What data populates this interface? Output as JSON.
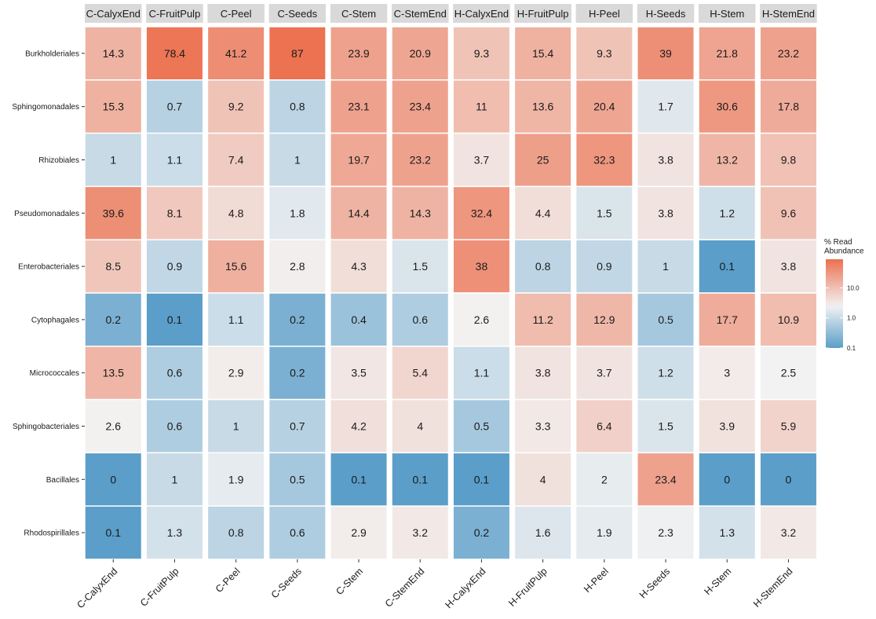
{
  "chart_data": {
    "type": "heatmap",
    "columns": [
      "C-CalyxEnd",
      "C-FruitPulp",
      "C-Peel",
      "C-Seeds",
      "C-Stem",
      "C-StemEnd",
      "H-CalyxEnd",
      "H-FruitPulp",
      "H-Peel",
      "H-Seeds",
      "H-Stem",
      "H-StemEnd"
    ],
    "rows": [
      "Burkholderiales",
      "Sphingomonadales",
      "Rhizobiales",
      "Pseudomonadales",
      "Enterobacteriales",
      "Cytophagales",
      "Micrococcales",
      "Sphingobacteriales",
      "Bacillales",
      "Rhodospirillales"
    ],
    "values": [
      [
        14.3,
        78.4,
        41.2,
        87,
        23.9,
        20.9,
        9.3,
        15.4,
        9.3,
        39,
        21.8,
        23.2
      ],
      [
        15.3,
        0.7,
        9.2,
        0.8,
        23.1,
        23.4,
        11,
        13.6,
        20.4,
        1.7,
        30.6,
        17.8
      ],
      [
        1,
        1.1,
        7.4,
        1,
        19.7,
        23.2,
        3.7,
        25,
        32.3,
        3.8,
        13.2,
        9.8
      ],
      [
        39.6,
        8.1,
        4.8,
        1.8,
        14.4,
        14.3,
        32.4,
        4.4,
        1.5,
        3.8,
        1.2,
        9.6
      ],
      [
        8.5,
        0.9,
        15.6,
        2.8,
        4.3,
        1.5,
        38,
        0.8,
        0.9,
        1,
        0.1,
        3.8
      ],
      [
        0.2,
        0.1,
        1.1,
        0.2,
        0.4,
        0.6,
        2.6,
        11.2,
        12.9,
        0.5,
        17.7,
        10.9
      ],
      [
        13.5,
        0.6,
        2.9,
        0.2,
        3.5,
        5.4,
        1.1,
        3.8,
        3.7,
        1.2,
        3,
        2.5
      ],
      [
        2.6,
        0.6,
        1,
        0.7,
        4.2,
        4,
        0.5,
        3.3,
        6.4,
        1.5,
        3.9,
        5.9
      ],
      [
        0,
        1,
        1.9,
        0.5,
        0.1,
        0.1,
        0.1,
        4,
        2,
        23.4,
        0,
        0
      ],
      [
        0.1,
        1.3,
        0.8,
        0.6,
        2.9,
        3.2,
        0.2,
        1.6,
        1.9,
        2.3,
        1.3,
        3.2
      ]
    ],
    "color_scale": {
      "type": "log",
      "low_color": "#5a9ec9",
      "mid_color": "#f2f2f2",
      "high_color": "#ec7150",
      "midpoint": 2.5,
      "limits": [
        0.1,
        90
      ]
    },
    "legend": {
      "title": [
        "% Read",
        "Abundance"
      ],
      "ticks": [
        10.0,
        1.0,
        0.1
      ],
      "tick_labels": [
        "10.0",
        "1.0",
        "0.1"
      ],
      "position": "right"
    },
    "facet_strips": "top",
    "grid": false
  }
}
